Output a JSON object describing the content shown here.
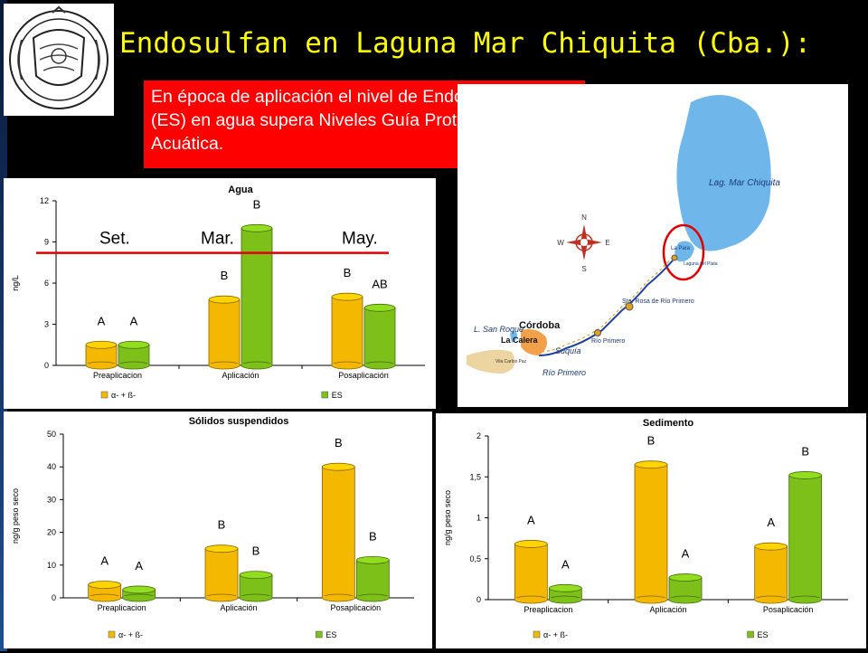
{
  "slide": {
    "title": "Endosulfan en Laguna Mar Chiquita (Cba.):",
    "note": "En época de aplicación el nivel de Endosulfan Sulfato (ES) en agua supera Niveles Guía Protección Biota Acuática.",
    "period_labels": [
      "Set.",
      "Mar.",
      "May."
    ]
  },
  "map": {
    "lake_label": "Lag. Mar Chiquita",
    "labels": [
      "Córdoba",
      "L. San Roque",
      "La Calera",
      "Suquía",
      "Río Primero",
      "Sta. Rosa de Río Primero",
      "Río Primero",
      "La Para",
      "Vila Carlos Paz",
      "Laguna del Plata"
    ],
    "compass": [
      "N",
      "S",
      "E",
      "W"
    ]
  },
  "colors": {
    "alpha_beta": "#f5b800",
    "es": "#7ec01a",
    "line": "#e00000",
    "note_bg": "#ff0000",
    "title": "#ffff00"
  },
  "chart_data": [
    {
      "type": "bar",
      "title": "Agua",
      "ylabel": "ng/L",
      "categories": [
        "Preaplicacion",
        "Aplicación",
        "Posaplicación"
      ],
      "series": [
        {
          "name": "α- + ß-",
          "values": [
            1.5,
            4.8,
            5.0
          ]
        },
        {
          "name": "ES",
          "values": [
            1.5,
            10.0,
            4.2
          ]
        }
      ],
      "letters": [
        [
          "A",
          "A"
        ],
        [
          "B",
          "B"
        ],
        [
          "B",
          "AB"
        ]
      ],
      "ylim": [
        0,
        12
      ],
      "yticks": [
        0,
        3,
        6,
        9,
        12
      ],
      "reference_line": 8.2,
      "legend": "bottom"
    },
    {
      "type": "bar",
      "title": "Sólidos suspendidos",
      "ylabel": "ng/g peso seco",
      "categories": [
        "Preaplicacion",
        "Aplicación",
        "Posaplicación"
      ],
      "series": [
        {
          "name": "α- + ß-",
          "values": [
            4,
            15,
            40
          ]
        },
        {
          "name": "ES",
          "values": [
            2.5,
            7,
            11.5
          ]
        }
      ],
      "letters": [
        [
          "A",
          "A"
        ],
        [
          "B",
          "B"
        ],
        [
          "B",
          "B"
        ]
      ],
      "ylim": [
        0,
        50
      ],
      "yticks": [
        0,
        10,
        20,
        30,
        40,
        50
      ],
      "legend": "bottom"
    },
    {
      "type": "bar",
      "title": "Sedimento",
      "ylabel": "ng/g peso seco",
      "categories": [
        "Preaplicacion",
        "Aplicación",
        "Posaplicación"
      ],
      "series": [
        {
          "name": "α- + ß-",
          "values": [
            0.68,
            1.65,
            0.65
          ]
        },
        {
          "name": "ES",
          "values": [
            0.14,
            0.27,
            1.52
          ]
        }
      ],
      "letters": [
        [
          "A",
          "A"
        ],
        [
          "B",
          "A"
        ],
        [
          "A",
          "B"
        ]
      ],
      "ylim": [
        0,
        2
      ],
      "yticks": [
        0,
        0.5,
        1,
        1.5,
        2
      ],
      "ytick_labels": [
        "0",
        "0,5",
        "1",
        "1,5",
        "2"
      ],
      "legend": "bottom"
    }
  ]
}
